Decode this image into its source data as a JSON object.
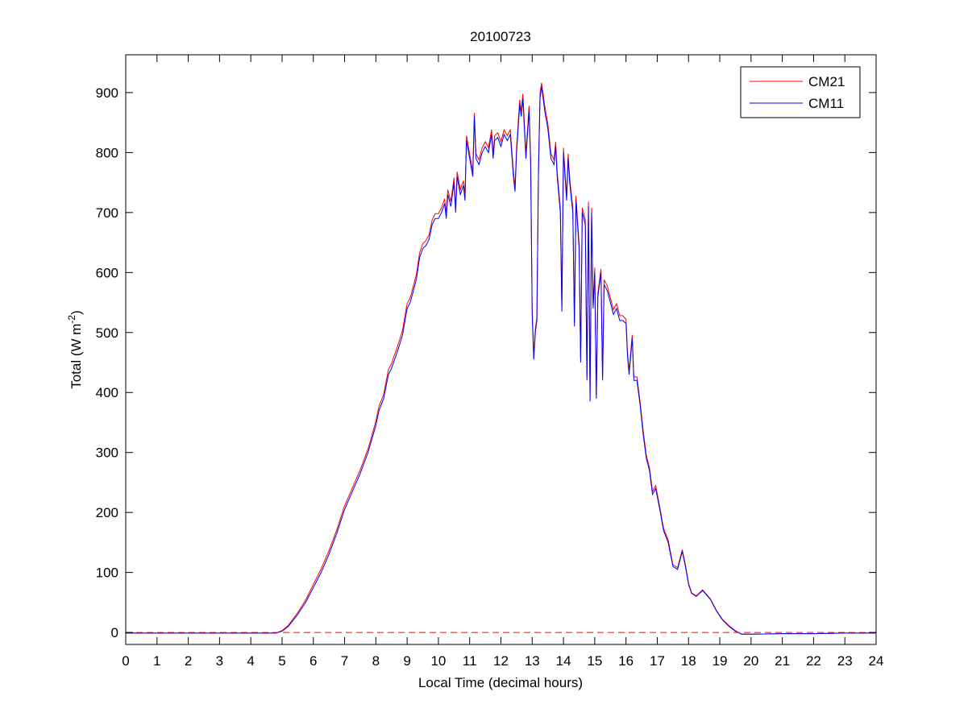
{
  "chart_data": {
    "type": "line",
    "title": "20100723",
    "xlabel": "Local Time (decimal hours)",
    "ylabel": "Total (W m",
    "ylabel_sup": "-2",
    "ylabel_close": ")",
    "xlim": [
      0,
      24
    ],
    "ylim": [
      -20,
      963
    ],
    "xticks": [
      0,
      1,
      2,
      3,
      4,
      5,
      6,
      7,
      8,
      9,
      10,
      11,
      12,
      13,
      14,
      15,
      16,
      17,
      18,
      19,
      20,
      21,
      22,
      23,
      24
    ],
    "yticks": [
      0,
      100,
      200,
      300,
      400,
      500,
      600,
      700,
      800,
      900
    ],
    "grid": false,
    "legend_position": "top-right",
    "reference_line": {
      "y": 0,
      "style": "dashed",
      "color": "#ff0000"
    },
    "x": [
      0,
      4.8,
      5.0,
      5.2,
      5.5,
      5.75,
      6,
      6.25,
      6.5,
      6.75,
      7,
      7.25,
      7.5,
      7.75,
      8,
      8.1,
      8.25,
      8.4,
      8.5,
      8.7,
      8.85,
      9,
      9.1,
      9.2,
      9.3,
      9.4,
      9.5,
      9.6,
      9.7,
      9.8,
      9.9,
      10,
      10.1,
      10.2,
      10.25,
      10.3,
      10.4,
      10.5,
      10.55,
      10.6,
      10.7,
      10.8,
      10.85,
      10.9,
      11.0,
      11.1,
      11.15,
      11.2,
      11.3,
      11.4,
      11.5,
      11.6,
      11.7,
      11.75,
      11.8,
      11.9,
      12.0,
      12.1,
      12.2,
      12.3,
      12.4,
      12.45,
      12.5,
      12.6,
      12.65,
      12.7,
      12.8,
      12.9,
      12.95,
      13.0,
      13.05,
      13.1,
      13.15,
      13.2,
      13.25,
      13.3,
      13.35,
      13.4,
      13.5,
      13.6,
      13.7,
      13.75,
      13.8,
      13.9,
      13.95,
      14.0,
      14.05,
      14.1,
      14.15,
      14.2,
      14.3,
      14.35,
      14.4,
      14.5,
      14.55,
      14.6,
      14.7,
      14.75,
      14.8,
      14.85,
      14.9,
      14.95,
      15.0,
      15.05,
      15.1,
      15.2,
      15.25,
      15.3,
      15.4,
      15.5,
      15.6,
      15.7,
      15.8,
      15.9,
      16.0,
      16.05,
      16.1,
      16.2,
      16.25,
      16.35,
      16.45,
      16.55,
      16.65,
      16.75,
      16.85,
      16.95,
      17.1,
      17.2,
      17.35,
      17.5,
      17.65,
      17.8,
      17.9,
      18.0,
      18.1,
      18.25,
      18.45,
      18.7,
      18.9,
      19.1,
      19.3,
      19.5,
      19.7,
      20,
      21,
      22,
      23,
      24
    ],
    "series": [
      {
        "name": "CM21",
        "color": "#ff0000",
        "values": [
          -1,
          -1,
          3,
          12,
          33,
          54,
          80,
          106,
          136,
          171,
          211,
          241,
          271,
          306,
          352,
          377,
          397,
          438,
          448,
          478,
          503,
          548,
          558,
          578,
          598,
          633,
          648,
          653,
          663,
          688,
          698,
          698,
          708,
          723,
          698,
          738,
          718,
          758,
          708,
          768,
          738,
          753,
          728,
          828,
          798,
          768,
          866,
          798,
          788,
          808,
          818,
          808,
          838,
          798,
          828,
          833,
          818,
          838,
          828,
          838,
          768,
          742,
          808,
          888,
          868,
          898,
          798,
          878,
          788,
          536,
          461,
          506,
          526,
          766,
          898,
          916,
          898,
          878,
          848,
          798,
          788,
          818,
          768,
          708,
          541,
          808,
          768,
          728,
          798,
          758,
          708,
          516,
          728,
          648,
          456,
          708,
          688,
          426,
          718,
          391,
          708,
          546,
          608,
          396,
          566,
          606,
          426,
          588,
          578,
          558,
          538,
          548,
          528,
          528,
          522,
          466,
          436,
          496,
          426,
          426,
          386,
          336,
          295,
          275,
          235,
          245,
          204,
          174,
          154,
          113,
          108,
          138,
          113,
          82,
          66,
          61,
          71,
          56,
          36,
          21,
          11,
          3,
          -3,
          -3,
          -2,
          -2,
          -1,
          -1
        ]
      },
      {
        "name": "CM11",
        "color": "#0000ff",
        "values": [
          -1,
          -1,
          2,
          10,
          30,
          50,
          75,
          100,
          130,
          165,
          205,
          235,
          265,
          300,
          345,
          370,
          390,
          430,
          440,
          470,
          495,
          540,
          550,
          570,
          590,
          625,
          640,
          645,
          655,
          680,
          690,
          690,
          700,
          715,
          690,
          730,
          710,
          750,
          700,
          760,
          730,
          745,
          720,
          820,
          790,
          760,
          860,
          790,
          780,
          800,
          810,
          800,
          830,
          790,
          820,
          825,
          810,
          830,
          820,
          830,
          760,
          735,
          800,
          880,
          860,
          890,
          790,
          870,
          780,
          530,
          455,
          500,
          520,
          760,
          890,
          910,
          890,
          870,
          840,
          790,
          780,
          810,
          760,
          700,
          535,
          800,
          760,
          720,
          790,
          750,
          700,
          510,
          720,
          640,
          450,
          700,
          680,
          420,
          710,
          385,
          700,
          540,
          600,
          390,
          560,
          600,
          420,
          580,
          570,
          550,
          530,
          540,
          520,
          520,
          515,
          460,
          430,
          490,
          420,
          420,
          380,
          330,
          290,
          270,
          230,
          240,
          200,
          170,
          150,
          110,
          105,
          135,
          110,
          80,
          65,
          60,
          70,
          55,
          35,
          20,
          10,
          2,
          -3,
          -3,
          -2,
          -2,
          -1,
          -1
        ]
      }
    ]
  }
}
